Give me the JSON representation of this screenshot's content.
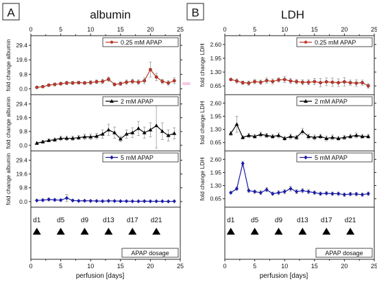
{
  "panel_letters": [
    "A",
    "B"
  ],
  "titles": [
    "albumin",
    "LDH"
  ],
  "xlabel": "perfusion [days]",
  "ylabels": {
    "albumin": "fold change albumin",
    "ldh": "fold change LDH"
  },
  "legends": {
    "low": "0.25 mM APAP",
    "mid": "2 mM APAP",
    "high": "5 mM APAP"
  },
  "dosage": {
    "label": "APAP dosage",
    "days": [
      "d1",
      "d5",
      "d9",
      "d13",
      "d17",
      "d21"
    ]
  },
  "colors": {
    "low": "#c0392b",
    "mid": "#000000",
    "high": "#1a1aa6",
    "highlight": "#f7c6e4"
  },
  "chart_data": [
    {
      "type": "line",
      "panel": "A",
      "title": "albumin",
      "xlabel": "perfusion [days]",
      "ylabel": "fold change albumin",
      "xlim": [
        0,
        25
      ],
      "xticks": [
        0,
        5,
        10,
        15,
        20,
        25
      ],
      "ylim": [
        -3,
        35
      ],
      "yticks": [
        0.0,
        9.8,
        19.6,
        29.4
      ],
      "series": [
        {
          "name": "0.25 mM APAP",
          "marker": "circle",
          "x": [
            1,
            2,
            3,
            4,
            5,
            6,
            7,
            8,
            9,
            10,
            11,
            12,
            13,
            14,
            15,
            16,
            17,
            18,
            19,
            20,
            21,
            22,
            23,
            24
          ],
          "y": [
            1.0,
            1.5,
            2.5,
            3.0,
            3.5,
            4.0,
            4.0,
            4.2,
            4.0,
            4.3,
            4.8,
            5.0,
            6.5,
            3.0,
            3.5,
            4.5,
            5.0,
            4.5,
            5.5,
            13.0,
            8.0,
            5.0,
            4.0,
            5.5
          ],
          "err": [
            0.5,
            0.5,
            0.8,
            1.0,
            1.0,
            1.2,
            1.0,
            1.0,
            1.0,
            1.2,
            1.2,
            1.5,
            1.5,
            1.0,
            1.2,
            1.5,
            1.5,
            1.5,
            2.0,
            5.0,
            2.5,
            1.5,
            1.5,
            2.0
          ]
        },
        {
          "name": "2 mM APAP",
          "marker": "triangle",
          "x": [
            1,
            2,
            3,
            4,
            5,
            6,
            7,
            8,
            9,
            10,
            11,
            12,
            13,
            14,
            15,
            16,
            17,
            18,
            19,
            20,
            21,
            22,
            23,
            24
          ],
          "y": [
            1.5,
            2.5,
            3.5,
            4.0,
            5.0,
            5.0,
            5.0,
            5.5,
            6.0,
            6.0,
            6.5,
            8.0,
            11.0,
            9.0,
            4.5,
            8.0,
            9.0,
            12.0,
            9.0,
            11.0,
            14.0,
            10.0,
            7.0,
            8.5
          ],
          "err": [
            0.8,
            1.0,
            1.0,
            1.2,
            1.5,
            1.5,
            1.5,
            1.5,
            2.0,
            2.0,
            2.0,
            3.0,
            4.0,
            4.0,
            2.0,
            3.0,
            3.5,
            5.0,
            4.0,
            5.0,
            16.0,
            6.0,
            4.0,
            4.0
          ]
        },
        {
          "name": "5 mM APAP",
          "marker": "diamond",
          "x": [
            1,
            2,
            3,
            4,
            5,
            6,
            7,
            8,
            9,
            10,
            11,
            12,
            13,
            14,
            15,
            16,
            17,
            18,
            19,
            20,
            21,
            22,
            23,
            24
          ],
          "y": [
            0.8,
            1.0,
            1.5,
            1.2,
            1.0,
            2.5,
            0.8,
            0.5,
            0.6,
            0.5,
            0.4,
            0.3,
            0.5,
            0.4,
            0.3,
            0.3,
            0.2,
            0.2,
            0.3,
            0.2,
            0.2,
            0.2,
            0.1,
            0.2
          ],
          "err": [
            0.5,
            0.8,
            1.0,
            0.8,
            0.8,
            2.5,
            0.6,
            0.5,
            0.5,
            0.4,
            0.3,
            0.3,
            0.4,
            0.3,
            0.3,
            0.3,
            0.2,
            0.2,
            0.3,
            0.2,
            0.2,
            0.2,
            0.1,
            0.2
          ]
        }
      ]
    },
    {
      "type": "line",
      "panel": "B",
      "title": "LDH",
      "xlabel": "perfusion [days]",
      "ylabel": "fold change LDH",
      "xlim": [
        0,
        25
      ],
      "xticks": [
        0,
        5,
        10,
        15,
        20,
        25
      ],
      "ylim": [
        0.3,
        2.95
      ],
      "yticks": [
        0.65,
        1.3,
        1.95,
        2.6
      ],
      "series": [
        {
          "name": "0.25 mM APAP",
          "marker": "circle",
          "x": [
            1,
            2,
            3,
            4,
            5,
            6,
            7,
            8,
            9,
            10,
            11,
            12,
            13,
            14,
            15,
            16,
            17,
            18,
            19,
            20,
            21,
            22,
            23,
            24
          ],
          "y": [
            0.95,
            0.88,
            0.8,
            0.78,
            0.85,
            0.82,
            0.9,
            0.86,
            0.93,
            0.95,
            0.88,
            0.85,
            0.82,
            0.82,
            0.85,
            0.8,
            0.84,
            0.82,
            0.8,
            0.84,
            0.8,
            0.78,
            0.8,
            0.65
          ],
          "err": [
            0.05,
            0.1,
            0.08,
            0.1,
            0.1,
            0.1,
            0.12,
            0.12,
            0.1,
            0.15,
            0.12,
            0.1,
            0.12,
            0.12,
            0.15,
            0.2,
            0.18,
            0.2,
            0.18,
            0.2,
            0.12,
            0.15,
            0.12,
            0.1
          ]
        },
        {
          "name": "2 mM APAP",
          "marker": "triangle",
          "x": [
            1,
            2,
            3,
            4,
            5,
            6,
            7,
            8,
            9,
            10,
            11,
            12,
            13,
            14,
            15,
            16,
            17,
            18,
            19,
            20,
            21,
            22,
            23,
            24
          ],
          "y": [
            1.1,
            1.55,
            0.9,
            1.0,
            0.95,
            1.05,
            1.0,
            0.95,
            1.0,
            0.85,
            0.95,
            0.9,
            1.2,
            0.95,
            0.9,
            0.95,
            0.85,
            0.9,
            0.85,
            0.9,
            0.95,
            1.0,
            0.95,
            0.95
          ],
          "err": [
            0.1,
            0.4,
            0.08,
            0.1,
            0.1,
            0.12,
            0.1,
            0.1,
            0.12,
            0.1,
            0.12,
            0.1,
            0.15,
            0.12,
            0.12,
            0.1,
            0.12,
            0.12,
            0.1,
            0.1,
            0.1,
            0.12,
            0.1,
            0.1
          ]
        },
        {
          "name": "5 mM APAP",
          "marker": "diamond",
          "x": [
            1,
            2,
            3,
            4,
            5,
            6,
            7,
            8,
            9,
            10,
            11,
            12,
            13,
            14,
            15,
            16,
            17,
            18,
            19,
            20,
            21,
            22,
            23,
            24
          ],
          "y": [
            0.95,
            1.15,
            2.4,
            1.05,
            1.0,
            0.95,
            1.1,
            0.9,
            0.95,
            1.0,
            1.15,
            1.0,
            1.05,
            1.0,
            0.95,
            0.9,
            0.92,
            0.9,
            0.9,
            0.85,
            0.88,
            0.88,
            0.85,
            0.9
          ],
          "err": [
            0.05,
            0.08,
            0.1,
            0.08,
            0.08,
            0.1,
            0.1,
            0.08,
            0.1,
            0.1,
            0.12,
            0.1,
            0.1,
            0.1,
            0.08,
            0.08,
            0.08,
            0.08,
            0.08,
            0.08,
            0.08,
            0.08,
            0.08,
            0.08
          ]
        }
      ]
    }
  ]
}
